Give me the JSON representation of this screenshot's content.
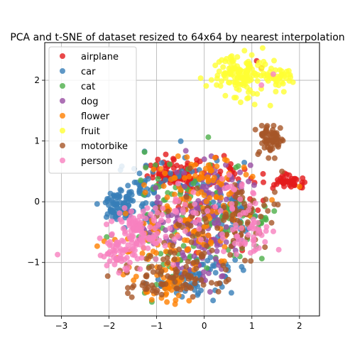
{
  "chart_data": {
    "type": "scatter",
    "title": "PCA and t-SNE of dataset resized to 64x64 by nearest interpolation",
    "xlabel": "",
    "ylabel": "",
    "xlim": [
      -3.35,
      2.42
    ],
    "ylim": [
      -1.88,
      2.62
    ],
    "xticks": [
      -3,
      -2,
      -1,
      0,
      1,
      2
    ],
    "yticks": [
      -1,
      0,
      1,
      2
    ],
    "grid": true,
    "legend_position": "upper-left",
    "series": [
      {
        "name": "airplane",
        "color": "#e41a1c",
        "clusters": [
          {
            "cx": -0.6,
            "cy": 0.45,
            "sx": 0.28,
            "sy": 0.12,
            "n": 90
          },
          {
            "cx": 1.75,
            "cy": 0.32,
            "sx": 0.2,
            "sy": 0.06,
            "n": 45
          },
          {
            "cx": 0.5,
            "cy": 0.45,
            "sx": 0.2,
            "sy": 0.1,
            "n": 25
          },
          {
            "cx": 0.1,
            "cy": 0.0,
            "sx": 0.5,
            "sy": 0.4,
            "n": 25
          }
        ],
        "points": [
          [
            1.1,
            2.32
          ],
          [
            1.2,
            2.2
          ],
          [
            2.05,
            0.27
          ],
          [
            -0.85,
            0.65
          ]
        ]
      },
      {
        "name": "car",
        "color": "#377eb8",
        "clusters": [
          {
            "cx": -1.75,
            "cy": -0.1,
            "sx": 0.2,
            "sy": 0.14,
            "n": 70
          },
          {
            "cx": -1.2,
            "cy": 0.15,
            "sx": 0.3,
            "sy": 0.25,
            "n": 60
          },
          {
            "cx": 0.55,
            "cy": -0.2,
            "sx": 0.25,
            "sy": 0.35,
            "n": 55
          },
          {
            "cx": -0.4,
            "cy": -1.35,
            "sx": 0.3,
            "sy": 0.12,
            "n": 40
          },
          {
            "cx": 0.1,
            "cy": -1.2,
            "sx": 0.3,
            "sy": 0.15,
            "n": 30
          },
          {
            "cx": -0.2,
            "cy": 0.3,
            "sx": 0.4,
            "sy": 0.2,
            "n": 30
          }
        ],
        "points": [
          [
            -2.0,
            0.05
          ],
          [
            -1.95,
            0.02
          ]
        ]
      },
      {
        "name": "cat",
        "color": "#4daf4a",
        "clusters": [
          {
            "cx": -0.4,
            "cy": 0.2,
            "sx": 0.5,
            "sy": 0.3,
            "n": 45
          },
          {
            "cx": 0.5,
            "cy": -0.4,
            "sx": 0.35,
            "sy": 0.3,
            "n": 35
          },
          {
            "cx": -0.6,
            "cy": -0.8,
            "sx": 0.45,
            "sy": 0.3,
            "n": 40
          },
          {
            "cx": 1.2,
            "cy": -0.3,
            "sx": 0.15,
            "sy": 0.15,
            "n": 12
          }
        ],
        "points": [
          [
            -1.1,
            -1.65
          ],
          [
            -2.05,
            -0.58
          ],
          [
            -1.95,
            -0.55
          ],
          [
            -1.25,
            -1.5
          ]
        ]
      },
      {
        "name": "dog",
        "color": "#984ea3",
        "clusters": [
          {
            "cx": -0.3,
            "cy": -0.3,
            "sx": 0.45,
            "sy": 0.3,
            "n": 70
          },
          {
            "cx": 0.0,
            "cy": -0.9,
            "sx": 0.35,
            "sy": 0.25,
            "n": 50
          },
          {
            "cx": 0.3,
            "cy": 0.3,
            "sx": 0.35,
            "sy": 0.2,
            "n": 35
          },
          {
            "cx": -1.0,
            "cy": -0.4,
            "sx": 0.4,
            "sy": 0.2,
            "n": 25
          }
        ],
        "points": [
          [
            0.15,
            0.75
          ],
          [
            0.0,
            0.7
          ]
        ]
      },
      {
        "name": "flower",
        "color": "#ff7f00",
        "clusters": [
          {
            "cx": -0.1,
            "cy": -0.1,
            "sx": 0.55,
            "sy": 0.45,
            "n": 90
          },
          {
            "cx": -0.9,
            "cy": -0.85,
            "sx": 0.45,
            "sy": 0.35,
            "n": 60
          },
          {
            "cx": 0.25,
            "cy": 0.4,
            "sx": 0.3,
            "sy": 0.15,
            "n": 25
          },
          {
            "cx": -0.75,
            "cy": -1.45,
            "sx": 0.2,
            "sy": 0.1,
            "n": 20
          }
        ],
        "points": [
          [
            -2.1,
            -0.65
          ],
          [
            -1.7,
            -1.2
          ],
          [
            -0.55,
            0.75
          ],
          [
            -0.6,
            -1.62
          ],
          [
            2.0,
            0.25
          ]
        ]
      },
      {
        "name": "fruit",
        "color": "#ffff33",
        "clusters": [
          {
            "cx": 0.8,
            "cy": 2.1,
            "sx": 0.32,
            "sy": 0.16,
            "n": 140
          },
          {
            "cx": 1.6,
            "cy": 2.05,
            "sx": 0.13,
            "sy": 0.07,
            "n": 30
          }
        ],
        "points": [
          [
            0.9,
            1.7
          ],
          [
            0.55,
            2.38
          ]
        ]
      },
      {
        "name": "motorbike",
        "color": "#a65628",
        "clusters": [
          {
            "cx": 1.4,
            "cy": 1.05,
            "sx": 0.13,
            "sy": 0.12,
            "n": 65
          },
          {
            "cx": 0.9,
            "cy": -0.25,
            "sx": 0.35,
            "sy": 0.3,
            "n": 65
          },
          {
            "cx": -0.5,
            "cy": -1.15,
            "sx": 0.5,
            "sy": 0.2,
            "n": 80
          },
          {
            "cx": -0.3,
            "cy": -0.3,
            "sx": 0.35,
            "sy": 0.25,
            "n": 30
          },
          {
            "cx": -1.3,
            "cy": -1.4,
            "sx": 0.2,
            "sy": 0.1,
            "n": 15
          }
        ],
        "points": [
          [
            1.35,
            0.72
          ],
          [
            -0.3,
            0.55
          ]
        ]
      },
      {
        "name": "person",
        "color": "#f781bf",
        "clusters": [
          {
            "cx": -1.35,
            "cy": -0.5,
            "sx": 0.3,
            "sy": 0.18,
            "n": 110
          },
          {
            "cx": -1.75,
            "cy": -0.85,
            "sx": 0.2,
            "sy": 0.15,
            "n": 50
          },
          {
            "cx": 0.95,
            "cy": -0.6,
            "sx": 0.3,
            "sy": 0.15,
            "n": 40
          },
          {
            "cx": 0.6,
            "cy": 0.1,
            "sx": 0.25,
            "sy": 0.2,
            "n": 25
          },
          {
            "cx": -0.4,
            "cy": -0.3,
            "sx": 0.4,
            "sy": 0.3,
            "n": 25
          }
        ],
        "points": [
          [
            -3.08,
            -0.87
          ],
          [
            1.2,
            1.92
          ],
          [
            1.45,
            2.1
          ],
          [
            -0.55,
            0.3
          ]
        ]
      }
    ]
  }
}
